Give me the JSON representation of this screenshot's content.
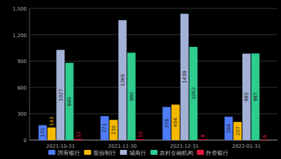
{
  "chart_data": {
    "type": "bar",
    "categories": [
      "2021-10-31",
      "2021-11-30",
      "2021-12-31",
      "2022-01-31"
    ],
    "series": [
      {
        "name": "国有银行",
        "color": "#4e7cf6",
        "values": [
          170,
          273,
          378,
          266
        ]
      },
      {
        "name": "股份制行",
        "color": "#f5b800",
        "values": [
          143,
          230,
          404,
          207
        ]
      },
      {
        "name": "城商行",
        "color": "#a3b1d6",
        "values": [
          1027,
          1366,
          1439,
          985
        ]
      },
      {
        "name": "农村金融机构",
        "color": "#2ecc8f",
        "values": [
          880,
          995,
          1062,
          987
        ]
      },
      {
        "name": "外资银行",
        "color": "#e8173f",
        "values": [
          12,
          10,
          9,
          6
        ]
      }
    ],
    "ylim": [
      0,
      1500
    ],
    "yticks": [
      0,
      300,
      600,
      900,
      {
        "value": 1200,
        "label": "1,200"
      },
      {
        "value": 1500,
        "label": "1,500"
      }
    ],
    "grid": true,
    "legend": "bottom",
    "data_labels": true
  }
}
